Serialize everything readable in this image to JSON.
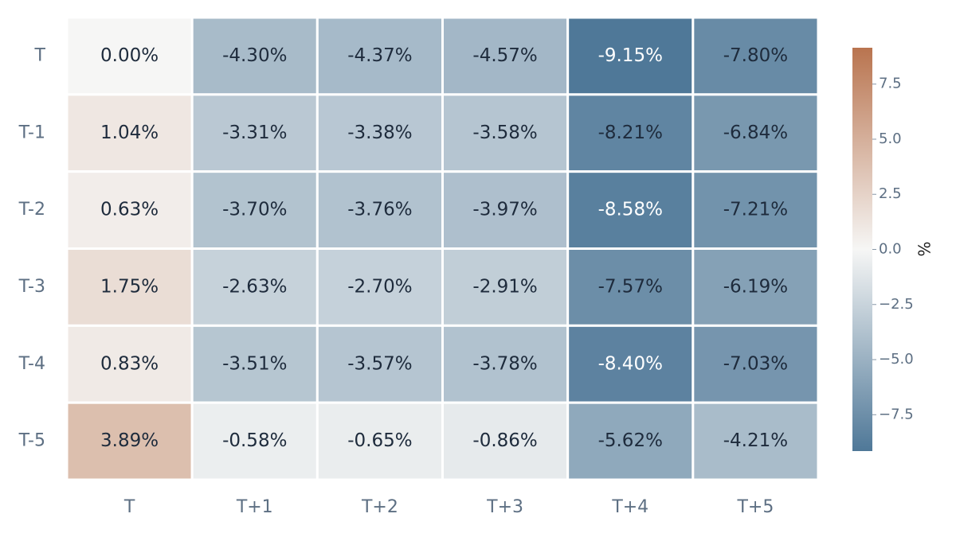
{
  "chart_data": {
    "type": "heatmap",
    "title": "",
    "xlabel": "",
    "ylabel": "",
    "x_categories": [
      "T",
      "T+1",
      "T+2",
      "T+3",
      "T+4",
      "T+5"
    ],
    "y_categories": [
      "T",
      "T-1",
      "T-2",
      "T-3",
      "T-4",
      "T-5"
    ],
    "values": [
      [
        0.0,
        -4.3,
        -4.37,
        -4.57,
        -9.15,
        -7.8
      ],
      [
        1.04,
        -3.31,
        -3.38,
        -3.58,
        -8.21,
        -6.84
      ],
      [
        0.63,
        -3.7,
        -3.76,
        -3.97,
        -8.58,
        -7.21
      ],
      [
        1.75,
        -2.63,
        -2.7,
        -2.91,
        -7.57,
        -6.19
      ],
      [
        0.83,
        -3.51,
        -3.57,
        -3.78,
        -8.4,
        -7.03
      ],
      [
        3.89,
        -0.58,
        -0.65,
        -0.86,
        -5.62,
        -4.21
      ]
    ],
    "cell_labels": [
      [
        "0.00%",
        "-4.30%",
        "-4.37%",
        "-4.57%",
        "-9.15%",
        "-7.80%"
      ],
      [
        "1.04%",
        "-3.31%",
        "-3.38%",
        "-3.58%",
        "-8.21%",
        "-6.84%"
      ],
      [
        "0.63%",
        "-3.70%",
        "-3.76%",
        "-3.97%",
        "-8.58%",
        "-7.21%"
      ],
      [
        "1.75%",
        "-2.63%",
        "-2.70%",
        "-2.91%",
        "-7.57%",
        "-6.19%"
      ],
      [
        "0.83%",
        "-3.51%",
        "-3.57%",
        "-3.78%",
        "-8.40%",
        "-7.03%"
      ],
      [
        "3.89%",
        "-0.58%",
        "-0.65%",
        "-0.86%",
        "-5.62%",
        "-4.21%"
      ]
    ],
    "colorbar": {
      "label": "%",
      "range": [
        -9.15,
        9.15
      ],
      "ticks": [
        7.5,
        5.0,
        2.5,
        0.0,
        -2.5,
        -5.0,
        -7.5
      ],
      "tick_labels": [
        "7.5",
        "5.0",
        "2.5",
        "0.0",
        "−2.5",
        "−5.0",
        "−7.5"
      ],
      "colors": {
        "negative": "#4f7898",
        "neutral": "#f6f6f5",
        "positive": "#b9744f"
      }
    },
    "grid": false,
    "legend": "colorbar-right"
  }
}
